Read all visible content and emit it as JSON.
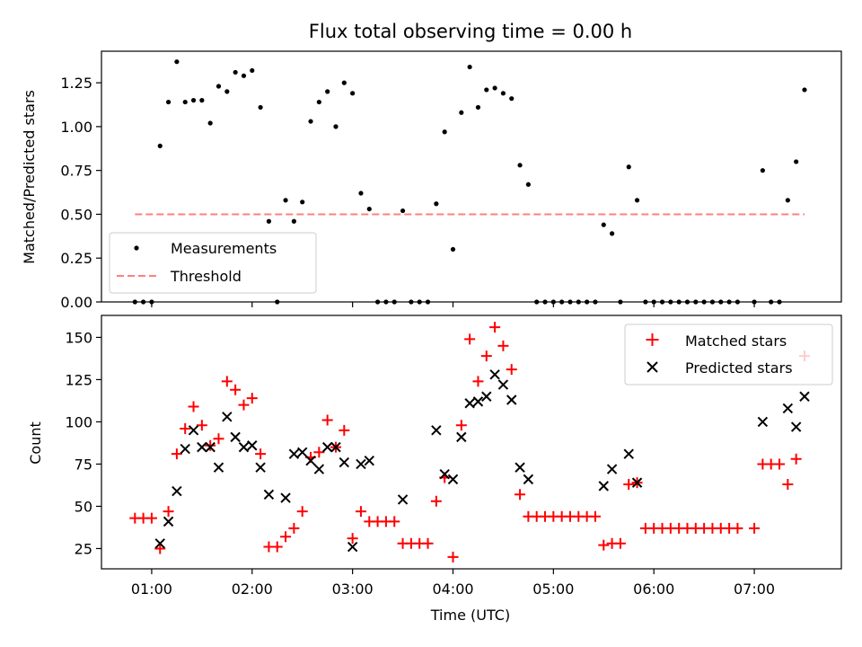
{
  "chart_data": {
    "title": "Flux total observing time = 0.00 h",
    "subplots": [
      {
        "type": "scatter",
        "ylabel": "Matched/Predicted stars",
        "xlim": [
          "00:30",
          "07:52"
        ],
        "ylim": [
          0,
          1.43
        ],
        "yticks": [
          "0.00",
          "0.25",
          "0.50",
          "0.75",
          "1.00",
          "1.25"
        ],
        "legend_position": "lower-left",
        "series": [
          {
            "name": "Measurements",
            "marker": "dot",
            "color": "#000000",
            "points": [
              [
                "00:50",
                0
              ],
              [
                "00:55",
                0
              ],
              [
                "01:00",
                0
              ],
              [
                "01:05",
                0.89
              ],
              [
                "01:10",
                1.14
              ],
              [
                "01:15",
                1.37
              ],
              [
                "01:20",
                1.14
              ],
              [
                "01:25",
                1.15
              ],
              [
                "01:30",
                1.15
              ],
              [
                "01:35",
                1.02
              ],
              [
                "01:40",
                1.23
              ],
              [
                "01:45",
                1.2
              ],
              [
                "01:50",
                1.31
              ],
              [
                "01:55",
                1.29
              ],
              [
                "02:00",
                1.32
              ],
              [
                "02:05",
                1.11
              ],
              [
                "02:10",
                0.46
              ],
              [
                "02:15",
                0
              ],
              [
                "02:20",
                0.58
              ],
              [
                "02:25",
                0.46
              ],
              [
                "02:30",
                0.57
              ],
              [
                "02:35",
                1.03
              ],
              [
                "02:40",
                1.14
              ],
              [
                "02:45",
                1.2
              ],
              [
                "02:50",
                1.0
              ],
              [
                "02:55",
                1.25
              ],
              [
                "03:00",
                1.19
              ],
              [
                "03:05",
                0.62
              ],
              [
                "03:10",
                0.53
              ],
              [
                "03:15",
                0
              ],
              [
                "03:20",
                0
              ],
              [
                "03:25",
                0
              ],
              [
                "03:30",
                0.52
              ],
              [
                "03:35",
                0
              ],
              [
                "03:40",
                0
              ],
              [
                "03:45",
                0
              ],
              [
                "03:50",
                0.56
              ],
              [
                "03:55",
                0.97
              ],
              [
                "04:00",
                0.3
              ],
              [
                "04:05",
                1.08
              ],
              [
                "04:10",
                1.34
              ],
              [
                "04:15",
                1.11
              ],
              [
                "04:20",
                1.21
              ],
              [
                "04:25",
                1.22
              ],
              [
                "04:30",
                1.19
              ],
              [
                "04:35",
                1.16
              ],
              [
                "04:40",
                0.78
              ],
              [
                "04:45",
                0.67
              ],
              [
                "04:50",
                0
              ],
              [
                "04:55",
                0
              ],
              [
                "05:00",
                0
              ],
              [
                "05:05",
                0
              ],
              [
                "05:10",
                0
              ],
              [
                "05:15",
                0
              ],
              [
                "05:20",
                0
              ],
              [
                "05:25",
                0
              ],
              [
                "05:30",
                0.44
              ],
              [
                "05:35",
                0.39
              ],
              [
                "05:40",
                0
              ],
              [
                "05:45",
                0.77
              ],
              [
                "05:50",
                0.58
              ],
              [
                "05:55",
                0
              ],
              [
                "06:00",
                0
              ],
              [
                "06:05",
                0
              ],
              [
                "06:10",
                0
              ],
              [
                "06:15",
                0
              ],
              [
                "06:20",
                0
              ],
              [
                "06:25",
                0
              ],
              [
                "06:30",
                0
              ],
              [
                "06:35",
                0
              ],
              [
                "06:40",
                0
              ],
              [
                "06:45",
                0
              ],
              [
                "06:50",
                0
              ],
              [
                "07:00",
                0
              ],
              [
                "07:05",
                0.75
              ],
              [
                "07:10",
                0
              ],
              [
                "07:15",
                0
              ],
              [
                "07:20",
                0.58
              ],
              [
                "07:25",
                0.8
              ],
              [
                "07:30",
                1.21
              ]
            ]
          },
          {
            "name": "Threshold",
            "marker": "dashed-line",
            "color": "#ff7f7f",
            "points": [
              [
                "00:50",
                0.5
              ],
              [
                "07:30",
                0.5
              ]
            ]
          }
        ]
      },
      {
        "type": "scatter",
        "xlabel": "Time (UTC)",
        "ylabel": "Count",
        "xlim": [
          "00:30",
          "07:52"
        ],
        "ylim": [
          13,
          163
        ],
        "yticks": [
          "25",
          "50",
          "75",
          "100",
          "125",
          "150"
        ],
        "xticks": [
          "01:00",
          "02:00",
          "03:00",
          "04:00",
          "05:00",
          "06:00",
          "07:00"
        ],
        "legend_position": "upper-right",
        "series": [
          {
            "name": "Matched stars",
            "marker": "plus",
            "color": "#ff0000",
            "points": [
              [
                "00:50",
                43
              ],
              [
                "00:55",
                43
              ],
              [
                "01:00",
                43
              ],
              [
                "01:05",
                25
              ],
              [
                "01:10",
                47
              ],
              [
                "01:15",
                81
              ],
              [
                "01:20",
                96
              ],
              [
                "01:25",
                109
              ],
              [
                "01:30",
                98
              ],
              [
                "01:35",
                86
              ],
              [
                "01:40",
                90
              ],
              [
                "01:45",
                124
              ],
              [
                "01:50",
                119
              ],
              [
                "01:55",
                110
              ],
              [
                "02:00",
                114
              ],
              [
                "02:05",
                81
              ],
              [
                "02:10",
                26
              ],
              [
                "02:15",
                26
              ],
              [
                "02:20",
                32
              ],
              [
                "02:25",
                37
              ],
              [
                "02:30",
                47
              ],
              [
                "02:35",
                79
              ],
              [
                "02:40",
                82
              ],
              [
                "02:45",
                101
              ],
              [
                "02:50",
                85
              ],
              [
                "02:55",
                95
              ],
              [
                "03:00",
                31
              ],
              [
                "03:05",
                47
              ],
              [
                "03:10",
                41
              ],
              [
                "03:15",
                41
              ],
              [
                "03:20",
                41
              ],
              [
                "03:25",
                41
              ],
              [
                "03:30",
                28
              ],
              [
                "03:35",
                28
              ],
              [
                "03:40",
                28
              ],
              [
                "03:45",
                28
              ],
              [
                "03:50",
                53
              ],
              [
                "03:55",
                67
              ],
              [
                "04:00",
                20
              ],
              [
                "04:05",
                98
              ],
              [
                "04:10",
                149
              ],
              [
                "04:15",
                124
              ],
              [
                "04:20",
                139
              ],
              [
                "04:25",
                156
              ],
              [
                "04:30",
                145
              ],
              [
                "04:35",
                131
              ],
              [
                "04:40",
                57
              ],
              [
                "04:45",
                44
              ],
              [
                "04:50",
                44
              ],
              [
                "04:55",
                44
              ],
              [
                "05:00",
                44
              ],
              [
                "05:05",
                44
              ],
              [
                "05:10",
                44
              ],
              [
                "05:15",
                44
              ],
              [
                "05:20",
                44
              ],
              [
                "05:25",
                44
              ],
              [
                "05:30",
                27
              ],
              [
                "05:35",
                28
              ],
              [
                "05:40",
                28
              ],
              [
                "05:45",
                63
              ],
              [
                "05:50",
                64
              ],
              [
                "05:55",
                37
              ],
              [
                "06:00",
                37
              ],
              [
                "06:05",
                37
              ],
              [
                "06:10",
                37
              ],
              [
                "06:15",
                37
              ],
              [
                "06:20",
                37
              ],
              [
                "06:25",
                37
              ],
              [
                "06:30",
                37
              ],
              [
                "06:35",
                37
              ],
              [
                "06:40",
                37
              ],
              [
                "06:45",
                37
              ],
              [
                "06:50",
                37
              ],
              [
                "07:00",
                37
              ],
              [
                "07:05",
                75
              ],
              [
                "07:10",
                75
              ],
              [
                "07:15",
                75
              ],
              [
                "07:20",
                63
              ],
              [
                "07:25",
                78
              ],
              [
                "07:30",
                139
              ]
            ]
          },
          {
            "name": "Predicted stars",
            "marker": "cross",
            "color": "#000000",
            "points": [
              [
                "01:05",
                28
              ],
              [
                "01:10",
                41
              ],
              [
                "01:15",
                59
              ],
              [
                "01:20",
                84
              ],
              [
                "01:25",
                95
              ],
              [
                "01:30",
                85
              ],
              [
                "01:35",
                85
              ],
              [
                "01:40",
                73
              ],
              [
                "01:45",
                103
              ],
              [
                "01:50",
                91
              ],
              [
                "01:55",
                85
              ],
              [
                "02:00",
                86
              ],
              [
                "02:05",
                73
              ],
              [
                "02:10",
                57
              ],
              [
                "02:20",
                55
              ],
              [
                "02:25",
                81
              ],
              [
                "02:30",
                82
              ],
              [
                "02:35",
                77
              ],
              [
                "02:40",
                72
              ],
              [
                "02:45",
                85
              ],
              [
                "02:50",
                85
              ],
              [
                "02:55",
                76
              ],
              [
                "03:00",
                26
              ],
              [
                "03:05",
                75
              ],
              [
                "03:10",
                77
              ],
              [
                "03:30",
                54
              ],
              [
                "03:50",
                95
              ],
              [
                "03:55",
                69
              ],
              [
                "04:00",
                66
              ],
              [
                "04:05",
                91
              ],
              [
                "04:10",
                111
              ],
              [
                "04:15",
                112
              ],
              [
                "04:20",
                115
              ],
              [
                "04:25",
                128
              ],
              [
                "04:30",
                122
              ],
              [
                "04:35",
                113
              ],
              [
                "04:40",
                73
              ],
              [
                "04:45",
                66
              ],
              [
                "05:30",
                62
              ],
              [
                "05:35",
                72
              ],
              [
                "05:45",
                81
              ],
              [
                "05:50",
                64
              ],
              [
                "07:05",
                100
              ],
              [
                "07:20",
                108
              ],
              [
                "07:25",
                97
              ],
              [
                "07:30",
                115
              ]
            ]
          }
        ]
      }
    ]
  }
}
